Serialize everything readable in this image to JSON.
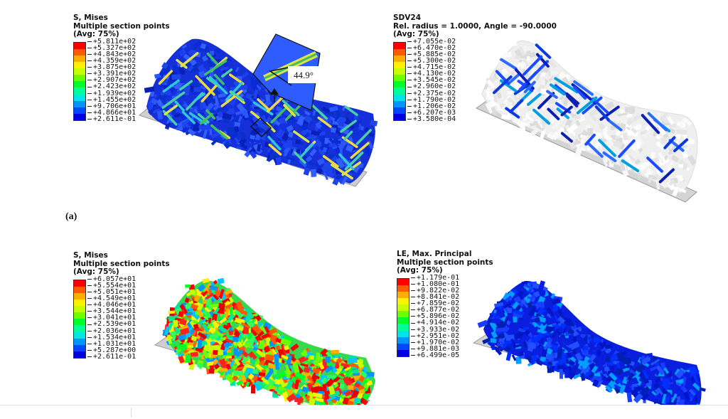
{
  "panel_label": "(a)",
  "panels": [
    {
      "id": "tl",
      "header": [
        "S, Mises",
        "Multiple section points",
        "(Avg: 75%)"
      ],
      "ticks": [
        "+5.811e+02",
        "+5.327e+02",
        "+4.843e+02",
        "+4.359e+02",
        "+3.875e+02",
        "+3.391e+02",
        "+2.907e+02",
        "+2.423e+02",
        "+1.939e+02",
        "+1.455e+02",
        "+9.706e+01",
        "+4.866e+01",
        "+2.611e-01"
      ],
      "inset_angle": "44.9°"
    },
    {
      "id": "tr",
      "header": [
        "SDV24",
        "Rel. radius = 1.0000, Angle = -90.0000",
        "(Avg: 75%)"
      ],
      "ticks": [
        "+7.055e-02",
        "+6.470e-02",
        "+5.885e-02",
        "+5.300e-02",
        "+4.715e-02",
        "+4.130e-02",
        "+3.545e-02",
        "+2.960e-02",
        "+2.375e-02",
        "+1.790e-02",
        "+1.206e-02",
        "+6.207e-03",
        "+3.580e-04"
      ]
    },
    {
      "id": "bl",
      "header": [
        "S, Mises",
        "Multiple section points",
        "(Avg: 75%)"
      ],
      "ticks": [
        "+6.057e+01",
        "+5.554e+01",
        "+5.051e+01",
        "+4.549e+01",
        "+4.046e+01",
        "+3.544e+01",
        "+3.041e+01",
        "+2.539e+01",
        "+2.036e+01",
        "+1.534e+01",
        "+1.031e+01",
        "+5.287e+00",
        "+2.611e-01"
      ]
    },
    {
      "id": "br",
      "header": [
        "LE, Max. Principal",
        "Multiple section points",
        "(Avg: 75%)"
      ],
      "ticks": [
        "+1.179e-01",
        "+1.080e-01",
        "+9.822e-02",
        "+8.841e-02",
        "+7.859e-02",
        "+6.877e-02",
        "+5.896e-02",
        "+4.914e-02",
        "+3.933e-02",
        "+2.951e-02",
        "+1.970e-02",
        "+9.881e-03",
        "+6.499e-05"
      ]
    }
  ],
  "legend_colors": [
    "#ff0000",
    "#ff5a00",
    "#ffae00",
    "#fff200",
    "#c8ff00",
    "#6dff00",
    "#00ff28",
    "#00ff9a",
    "#00e6e6",
    "#0096ff",
    "#0046ff",
    "#0000e6"
  ]
}
